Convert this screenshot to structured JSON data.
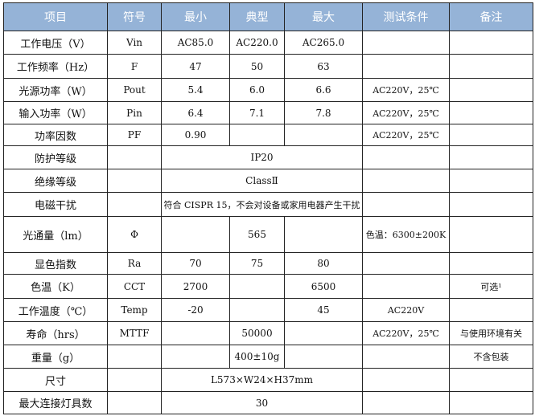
{
  "colors": {
    "header_bg": "#95b3d7",
    "header_text": "#ffffff"
  },
  "headers": [
    "项目",
    "符号",
    "最小",
    "典型",
    "最大",
    "测试条件",
    "备注"
  ],
  "rows": [
    {
      "cells": [
        {
          "t": "工作电压（V）"
        },
        {
          "t": "Vin"
        },
        {
          "t": "AC85.0"
        },
        {
          "t": "AC220.0"
        },
        {
          "t": "AC265.0"
        },
        {
          "t": ""
        },
        {
          "t": ""
        }
      ]
    },
    {
      "cells": [
        {
          "t": "工作频率（Hz）"
        },
        {
          "t": "F"
        },
        {
          "t": "47"
        },
        {
          "t": "50"
        },
        {
          "t": "63"
        },
        {
          "t": ""
        },
        {
          "t": ""
        }
      ]
    },
    {
      "cells": [
        {
          "t": "光源功率（W）"
        },
        {
          "t": "Pout"
        },
        {
          "t": "5.4"
        },
        {
          "t": "6.0"
        },
        {
          "t": "6.6"
        },
        {
          "t": "AC220V，25℃"
        },
        {
          "t": ""
        }
      ]
    },
    {
      "cells": [
        {
          "t": "输入功率（W）"
        },
        {
          "t": "Pin"
        },
        {
          "t": "6.4"
        },
        {
          "t": "7.1"
        },
        {
          "t": "7.8"
        },
        {
          "t": "AC220V，25℃"
        },
        {
          "t": ""
        }
      ]
    },
    {
      "cells": [
        {
          "t": "功率因数"
        },
        {
          "t": "PF"
        },
        {
          "t": "0.90"
        },
        {
          "t": ""
        },
        {
          "t": ""
        },
        {
          "t": "AC220V，25℃"
        },
        {
          "t": ""
        }
      ]
    },
    {
      "cells": [
        {
          "t": "防护等级"
        },
        {
          "t": ""
        },
        {
          "t": "IP20",
          "span": 3
        },
        {
          "t": ""
        },
        {
          "t": ""
        }
      ]
    },
    {
      "cells": [
        {
          "t": "绝缘等级"
        },
        {
          "t": ""
        },
        {
          "t": "ClassⅡ",
          "span": 3
        },
        {
          "t": ""
        },
        {
          "t": ""
        }
      ]
    },
    {
      "cells": [
        {
          "t": "电磁干扰"
        },
        {
          "t": ""
        },
        {
          "t": "符合 CISPR 15，不会对设备或家用电器产生干扰",
          "span": 3
        },
        {
          "t": ""
        },
        {
          "t": ""
        }
      ]
    },
    {
      "cells": [
        {
          "t": "光通量（lm）"
        },
        {
          "t": "Φ"
        },
        {
          "t": ""
        },
        {
          "t": "565"
        },
        {
          "t": ""
        },
        {
          "t": "色温：6300±200K"
        },
        {
          "t": ""
        }
      ]
    },
    {
      "cells": [
        {
          "t": "显色指数"
        },
        {
          "t": "Ra"
        },
        {
          "t": "70"
        },
        {
          "t": "75"
        },
        {
          "t": "80"
        },
        {
          "t": ""
        },
        {
          "t": ""
        }
      ]
    },
    {
      "cells": [
        {
          "t": "色温（K）"
        },
        {
          "t": "CCT"
        },
        {
          "t": "2700"
        },
        {
          "t": ""
        },
        {
          "t": "6500"
        },
        {
          "t": ""
        },
        {
          "t": "可选¹"
        }
      ]
    },
    {
      "cells": [
        {
          "t": "工作温度（℃）"
        },
        {
          "t": "Temp"
        },
        {
          "t": "-20"
        },
        {
          "t": ""
        },
        {
          "t": "45"
        },
        {
          "t": "AC220V"
        },
        {
          "t": ""
        }
      ]
    },
    {
      "cells": [
        {
          "t": "寿命（hrs）"
        },
        {
          "t": "MTTF"
        },
        {
          "t": ""
        },
        {
          "t": "50000"
        },
        {
          "t": ""
        },
        {
          "t": "AC220V，25℃"
        },
        {
          "t": "与使用环境有关"
        }
      ]
    },
    {
      "cells": [
        {
          "t": "重量（g）"
        },
        {
          "t": ""
        },
        {
          "t": ""
        },
        {
          "t": "400±10g"
        },
        {
          "t": ""
        },
        {
          "t": ""
        },
        {
          "t": "不含包装"
        }
      ]
    },
    {
      "cells": [
        {
          "t": "尺寸"
        },
        {
          "t": ""
        },
        {
          "t": "L573×W24×H37mm",
          "span": 3
        },
        {
          "t": ""
        },
        {
          "t": ""
        }
      ]
    },
    {
      "cells": [
        {
          "t": "最大连接灯具数"
        },
        {
          "t": ""
        },
        {
          "t": "30",
          "span": 3
        },
        {
          "t": ""
        },
        {
          "t": ""
        }
      ]
    }
  ]
}
